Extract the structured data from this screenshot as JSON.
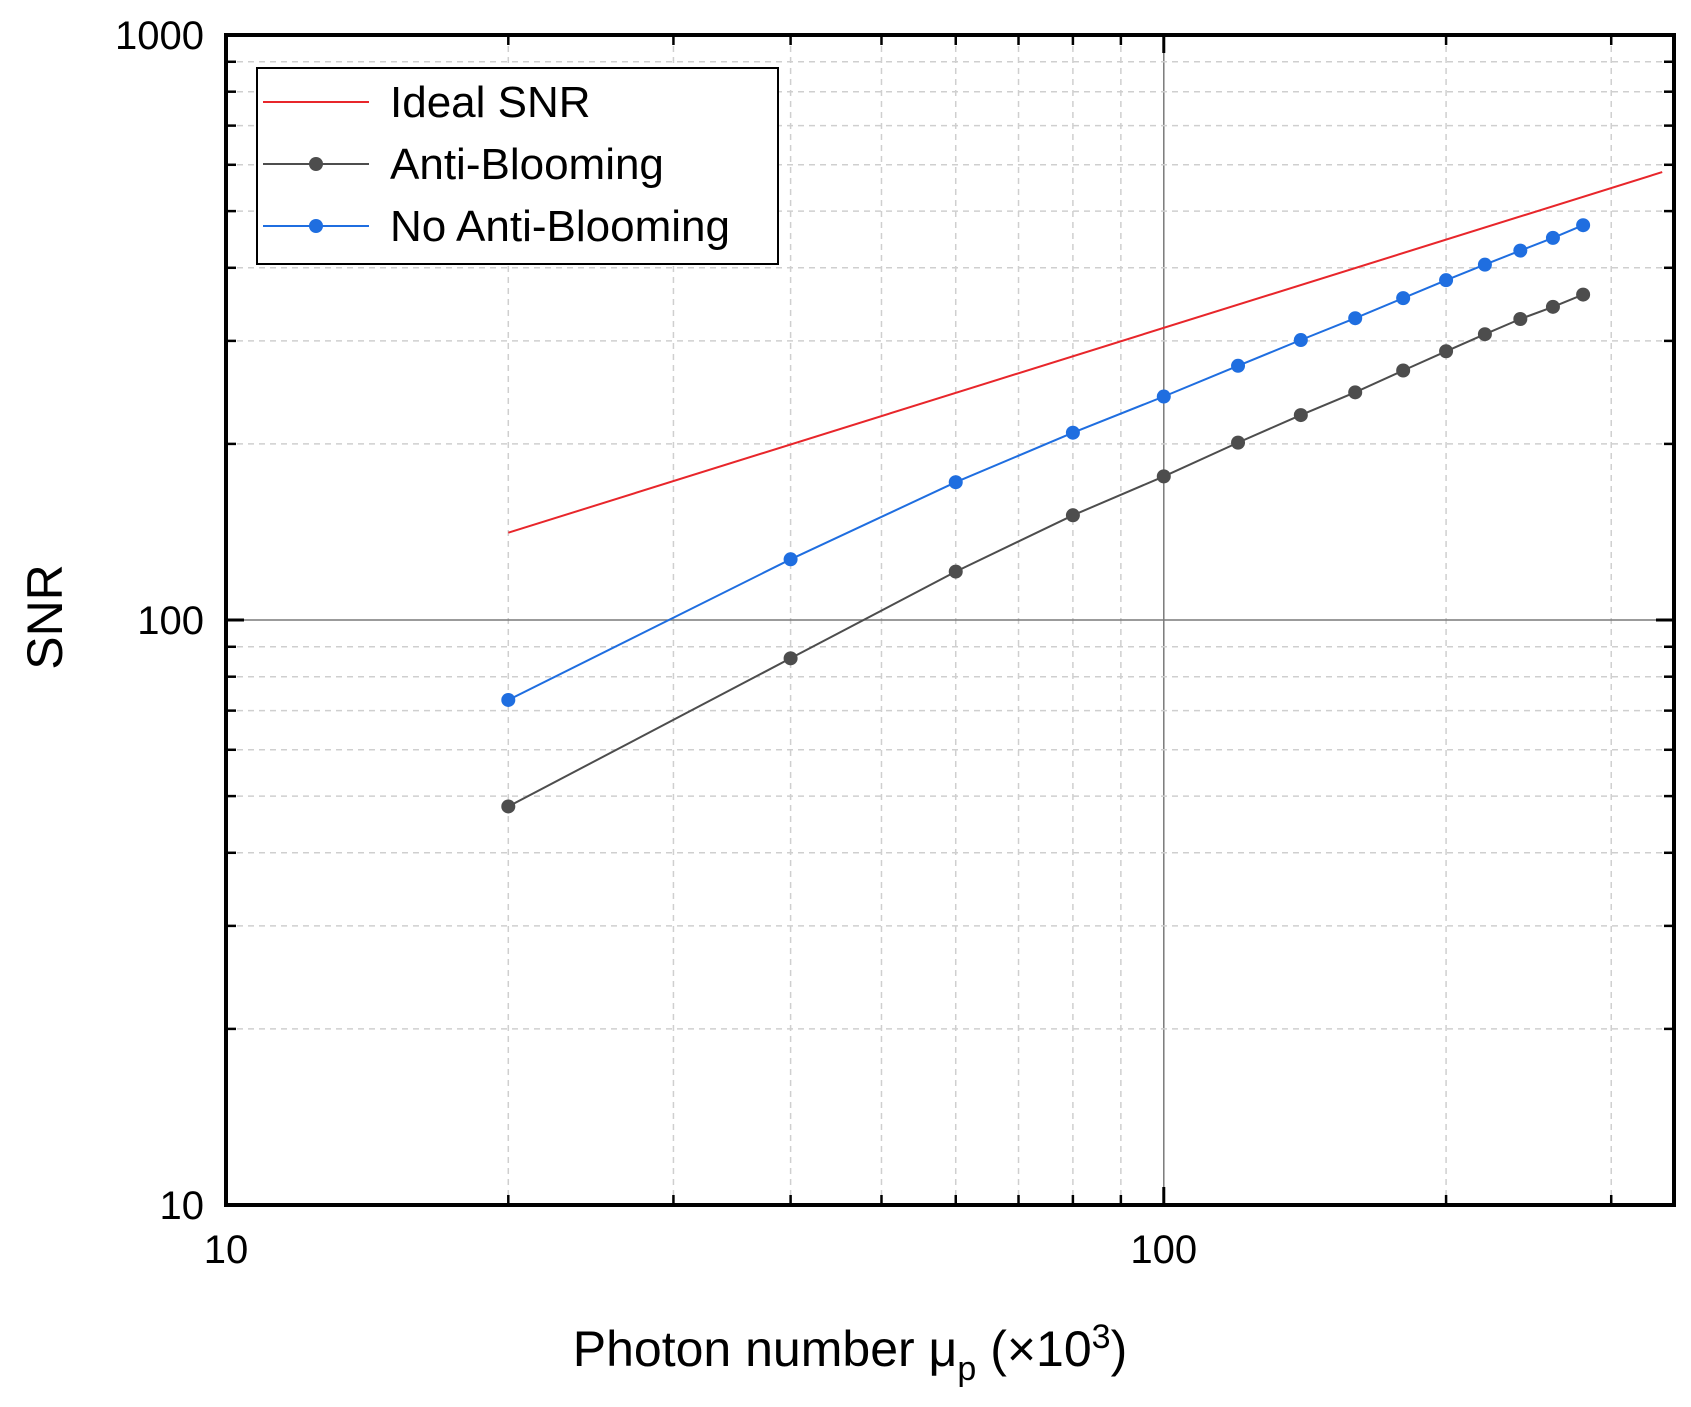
{
  "chart_data": {
    "type": "line",
    "title": "",
    "xlabel": "Photon number μp (×10³)",
    "xlabel_parts": {
      "main": "Photon number μ",
      "sub": "p",
      "open": " (×10",
      "sup": "3",
      "close": ")"
    },
    "ylabel": "SNR",
    "xscale": "log",
    "yscale": "log",
    "xlim": [
      10,
      350
    ],
    "ylim": [
      10,
      1000
    ],
    "x_ticks": [
      10,
      100
    ],
    "x_tick_labels": [
      "10",
      "100"
    ],
    "y_ticks": [
      10,
      100,
      1000
    ],
    "y_tick_labels": [
      "10",
      "100",
      "1000"
    ],
    "grid": true,
    "legend_position": "top-left",
    "series": [
      {
        "name": "Ideal SNR",
        "color": "#e8262b",
        "markers": false,
        "x": [
          20,
          340
        ],
        "y": [
          141,
          583
        ]
      },
      {
        "name": "Anti-Blooming",
        "color": "#4d4d4d",
        "markers": true,
        "x": [
          20,
          40,
          60,
          80,
          100,
          120,
          140,
          160,
          180,
          200,
          220,
          240,
          260,
          280
        ],
        "y": [
          48,
          86,
          121,
          151,
          176,
          201,
          224,
          245,
          267,
          288,
          308,
          327,
          343,
          360
        ]
      },
      {
        "name": "No Anti-Blooming",
        "color": "#1f6ee0",
        "markers": true,
        "x": [
          20,
          40,
          60,
          80,
          100,
          120,
          140,
          160,
          180,
          200,
          220,
          240,
          260,
          280
        ],
        "y": [
          73,
          127,
          172,
          209,
          241,
          272,
          301,
          328,
          355,
          381,
          405,
          428,
          450,
          473
        ]
      }
    ]
  }
}
